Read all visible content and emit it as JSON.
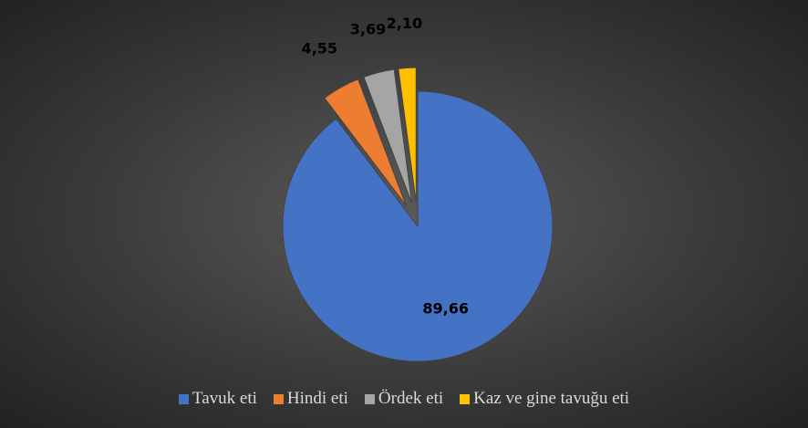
{
  "chart_data": {
    "type": "pie",
    "categories": [
      "Tavuk eti",
      "Hindi eti",
      "Ördek eti",
      "Kaz ve gine tavuğu eti"
    ],
    "values": [
      89.66,
      4.55,
      3.69,
      2.1
    ],
    "value_labels": [
      "89,66",
      "4,55",
      "3,69",
      "2,10"
    ],
    "colors": [
      "#4472c4",
      "#ed7d31",
      "#a5a5a5",
      "#ffc000"
    ],
    "legend": "bottom"
  }
}
